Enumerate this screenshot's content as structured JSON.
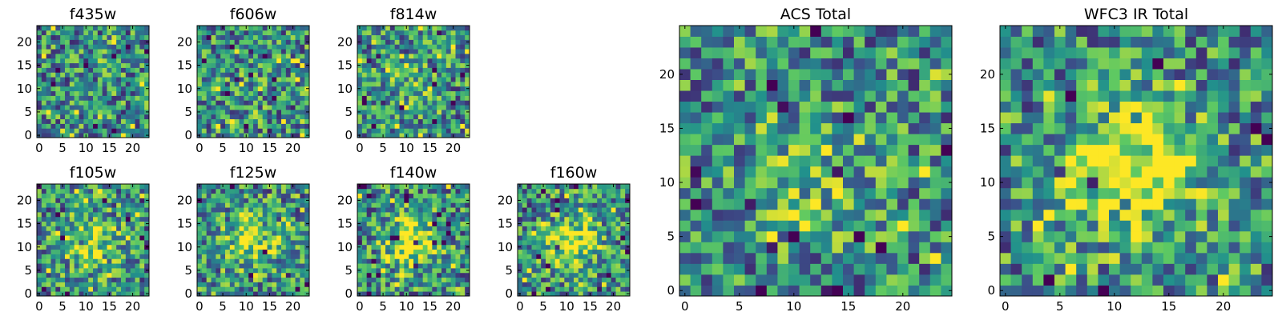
{
  "chart_data": [
    {
      "type": "heatmap",
      "title": "f435w",
      "xticks": [
        "0",
        "5",
        "10",
        "15",
        "20"
      ],
      "yticks": [
        "0",
        "5",
        "10",
        "15",
        "20"
      ],
      "grid": 24,
      "blob": 0.0,
      "seed": 11
    },
    {
      "type": "heatmap",
      "title": "f606w",
      "xticks": [
        "0",
        "5",
        "10",
        "15",
        "20"
      ],
      "yticks": [
        "0",
        "5",
        "10",
        "15",
        "20"
      ],
      "grid": 24,
      "blob": 0.1,
      "seed": 23
    },
    {
      "type": "heatmap",
      "title": "f814w",
      "xticks": [
        "0",
        "5",
        "10",
        "15",
        "20"
      ],
      "yticks": [
        "0",
        "5",
        "10",
        "15",
        "20"
      ],
      "grid": 24,
      "blob": 0.25,
      "seed": 37
    },
    {
      "type": "heatmap",
      "title": "f105w",
      "xticks": [
        "0",
        "5",
        "10",
        "15",
        "20"
      ],
      "yticks": [
        "0",
        "5",
        "10",
        "15",
        "20"
      ],
      "grid": 24,
      "blob": 0.7,
      "seed": 41
    },
    {
      "type": "heatmap",
      "title": "f125w",
      "xticks": [
        "0",
        "5",
        "10",
        "15",
        "20"
      ],
      "yticks": [
        "0",
        "5",
        "10",
        "15",
        "20"
      ],
      "grid": 24,
      "blob": 0.7,
      "seed": 53
    },
    {
      "type": "heatmap",
      "title": "f140w",
      "xticks": [
        "0",
        "5",
        "10",
        "15",
        "20"
      ],
      "yticks": [
        "0",
        "5",
        "10",
        "15",
        "20"
      ],
      "grid": 24,
      "blob": 0.9,
      "seed": 67
    },
    {
      "type": "heatmap",
      "title": "f160w",
      "xticks": [
        "0",
        "5",
        "10",
        "15",
        "20"
      ],
      "yticks": [
        "0",
        "5",
        "10",
        "15",
        "20"
      ],
      "grid": 24,
      "blob": 0.8,
      "seed": 71
    },
    {
      "type": "heatmap",
      "title": "ACS Total",
      "xticks": [
        "0",
        "5",
        "10",
        "15",
        "20"
      ],
      "yticks": [
        "0",
        "5",
        "10",
        "15",
        "20"
      ],
      "grid": 25,
      "blob": 0.35,
      "seed": 83
    },
    {
      "type": "heatmap",
      "title": "WFC3 IR Total",
      "xticks": [
        "0",
        "5",
        "10",
        "15",
        "20"
      ],
      "yticks": [
        "0",
        "5",
        "10",
        "15",
        "20"
      ],
      "grid": 25,
      "blob": 1.0,
      "seed": 97
    }
  ],
  "colormap": [
    "#440154",
    "#3b528b",
    "#21918c",
    "#5ec962",
    "#fde725"
  ]
}
